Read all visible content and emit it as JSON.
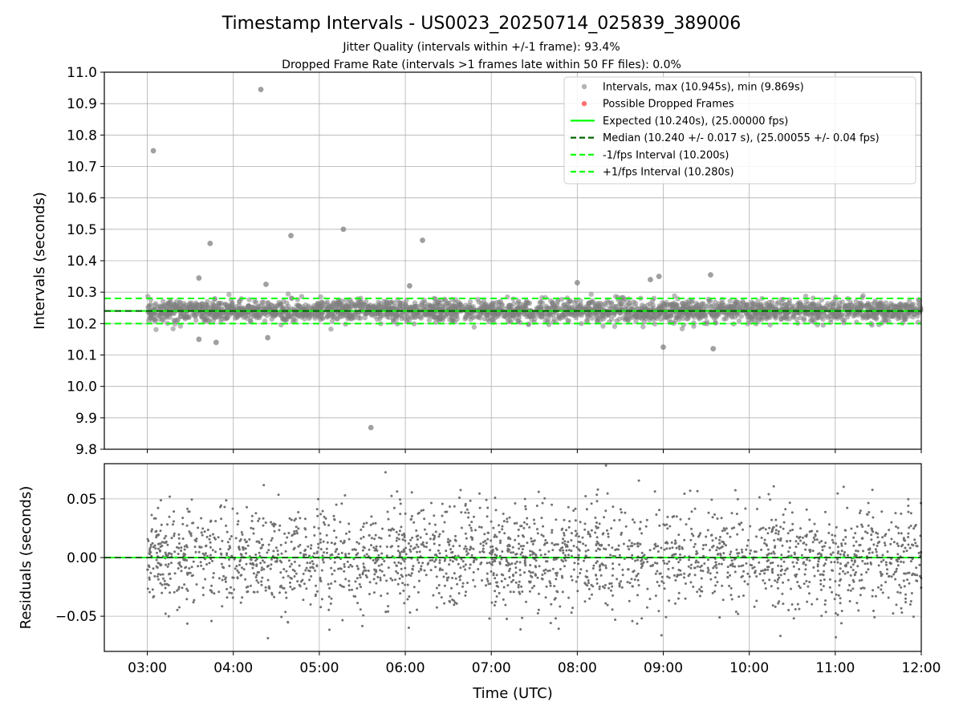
{
  "chart_data": {
    "title": "Timestamp Intervals - US0023_20250714_025839_389006",
    "subtitle_lines": [
      "Jitter Quality (intervals within +/-1 frame): 93.4%",
      "Dropped Frame Rate (intervals >1 frames late within 50 FF files): 0.0%"
    ],
    "xlabel": "Time (UTC)",
    "x_ticks": [
      "03:00",
      "04:00",
      "05:00",
      "06:00",
      "07:00",
      "08:00",
      "09:00",
      "10:00",
      "11:00",
      "12:00"
    ],
    "x_range_hours": [
      2.5,
      12.0
    ],
    "grid": true,
    "panels": [
      {
        "type": "scatter",
        "ylabel": "Intervals (seconds)",
        "ylim": [
          9.8,
          11.0
        ],
        "y_ticks": [
          "11.0",
          "10.9",
          "10.8",
          "10.7",
          "10.6",
          "10.5",
          "10.4",
          "10.3",
          "10.2",
          "10.1",
          "10.0",
          "9.9",
          "9.8"
        ],
        "legend_position": "top-right",
        "legend": [
          {
            "label": "Intervals, max (10.945s), min (9.869s)",
            "kind": "marker",
            "color": "#808080"
          },
          {
            "label": "Possible Dropped Frames",
            "kind": "marker",
            "color": "#ff0000"
          },
          {
            "label": "Expected (10.240s), (25.00000 fps)",
            "kind": "solid",
            "color": "#00ff00"
          },
          {
            "label": "Median (10.240 +/- 0.017 s), (25.00055 +/- 0.04 fps)",
            "kind": "dashed",
            "color": "#006400"
          },
          {
            "label": "-1/fps Interval (10.200s)",
            "kind": "dashed",
            "color": "#00ff00"
          },
          {
            "label": "+1/fps Interval (10.280s)",
            "kind": "dashed",
            "color": "#00ff00"
          }
        ],
        "reference_lines": {
          "expected": 10.24,
          "median": 10.24,
          "minus_one_fps": 10.2,
          "plus_one_fps": 10.28
        },
        "core_band": {
          "center": 10.24,
          "spread": 0.017
        },
        "outliers": [
          {
            "t": 3.07,
            "y": 10.75
          },
          {
            "t": 4.32,
            "y": 10.945
          },
          {
            "t": 3.73,
            "y": 10.455
          },
          {
            "t": 4.67,
            "y": 10.48
          },
          {
            "t": 5.28,
            "y": 10.5
          },
          {
            "t": 6.2,
            "y": 10.465
          },
          {
            "t": 3.6,
            "y": 10.345
          },
          {
            "t": 4.38,
            "y": 10.325
          },
          {
            "t": 5.6,
            "y": 9.869
          },
          {
            "t": 8.95,
            "y": 10.35
          },
          {
            "t": 8.85,
            "y": 10.34
          },
          {
            "t": 9.55,
            "y": 10.355
          },
          {
            "t": 9.58,
            "y": 10.12
          },
          {
            "t": 9.0,
            "y": 10.125
          },
          {
            "t": 3.8,
            "y": 10.14
          },
          {
            "t": 3.6,
            "y": 10.15
          },
          {
            "t": 4.4,
            "y": 10.155
          },
          {
            "t": 8.0,
            "y": 10.33
          },
          {
            "t": 6.05,
            "y": 10.32
          }
        ]
      },
      {
        "type": "scatter",
        "ylabel": "Residuals (seconds)",
        "ylim": [
          -0.08,
          0.08
        ],
        "y_ticks": [
          "0.05",
          "0.00",
          "−0.05"
        ],
        "y_tick_values": [
          0.05,
          0.0,
          -0.05
        ]
      }
    ]
  }
}
